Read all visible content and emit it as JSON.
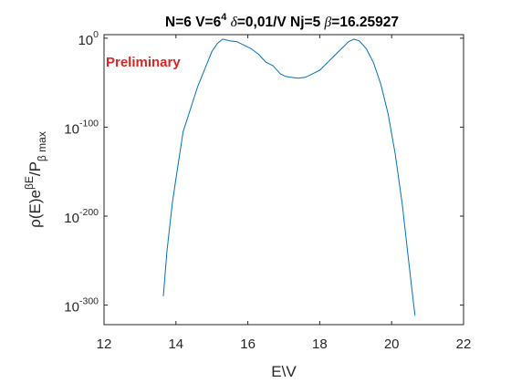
{
  "chart_data": {
    "type": "line",
    "title": {
      "part1": "N=6 V=6",
      "exp": "4",
      "greek1": "δ",
      "part2": "=0,01/V Nj=5 ",
      "greek2": "β",
      "part3": "=16.25927"
    },
    "xlabel": "E\\V",
    "ylabel": {
      "main": "ρ(E)e",
      "sup": "βE",
      "mid": "/P",
      "sub": "β max"
    },
    "annotation": "Preliminary",
    "log_scale_y": true,
    "xlim": [
      12,
      22
    ],
    "ylim_log10": [
      -322,
      4
    ],
    "x_ticks": [
      12,
      14,
      16,
      18,
      20,
      22
    ],
    "y_ticks": [
      {
        "base": "10",
        "exp": "0",
        "log10": 0
      },
      {
        "base": "10",
        "exp": "-100",
        "log10": -100
      },
      {
        "base": "10",
        "exp": "-200",
        "log10": -200
      },
      {
        "base": "10",
        "exp": "-300",
        "log10": -300
      }
    ],
    "grid": false,
    "series": [
      {
        "color": "#0072BD",
        "x": [
          13.65,
          13.75,
          13.9,
          14.0,
          14.2,
          14.4,
          14.6,
          14.8,
          15.0,
          15.15,
          15.3,
          15.5,
          15.7,
          15.9,
          16.1,
          16.3,
          16.5,
          16.7,
          16.9,
          17.05,
          17.2,
          17.4,
          17.6,
          17.8,
          18.0,
          18.2,
          18.4,
          18.6,
          18.8,
          18.95,
          19.1,
          19.3,
          19.5,
          19.7,
          19.9,
          20.1,
          20.3,
          20.45,
          20.55,
          20.65
        ],
        "y_log10": [
          -290,
          -240,
          -185,
          -158,
          -105,
          -80,
          -55,
          -35,
          -15,
          -6,
          -1,
          -3,
          -4,
          -8,
          -12,
          -18,
          -27,
          -31,
          -40,
          -43,
          -44,
          -45,
          -44,
          -40,
          -36,
          -28,
          -20,
          -12,
          -4,
          -1,
          -3,
          -12,
          -28,
          -52,
          -85,
          -130,
          -188,
          -242,
          -278,
          -312
        ]
      }
    ]
  }
}
